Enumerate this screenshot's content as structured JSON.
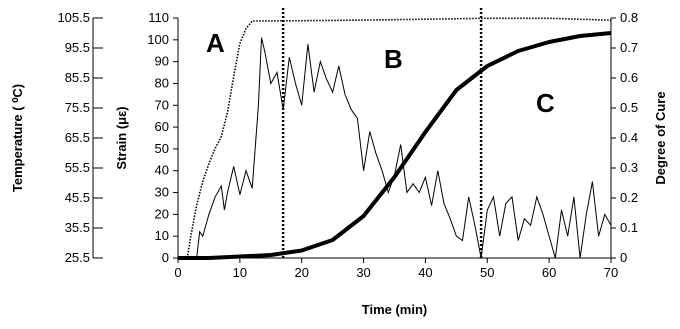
{
  "chart_data": {
    "type": "line",
    "xlabel": "Time (min)",
    "x_ticks": [
      "0",
      "10",
      "20",
      "30",
      "40",
      "50",
      "60",
      "70"
    ],
    "xlim": [
      0,
      70
    ],
    "axes": {
      "temperature": {
        "label": "Temperature ( ⁰C)",
        "ticks": [
          "105.5",
          "95.5",
          "85.5",
          "75.5",
          "65.5",
          "55.5",
          "45.5",
          "35.5",
          "25.5"
        ],
        "range": [
          25.5,
          105.5
        ]
      },
      "strain": {
        "label": "Strain (με)",
        "ticks": [
          "110",
          "100",
          "90",
          "80",
          "70",
          "60",
          "50",
          "40",
          "30",
          "20",
          "10",
          "0"
        ],
        "range": [
          0,
          110
        ]
      },
      "degree_of_cure": {
        "label": "Degree of Cure",
        "ticks": [
          "0.8",
          "0.7",
          "0.6",
          "0.5",
          "0.4",
          "0.3",
          "0.2",
          "0.1",
          "0"
        ],
        "range": [
          0,
          0.8
        ]
      }
    },
    "regions": [
      "A",
      "B",
      "C"
    ],
    "dividers_x": [
      17,
      49
    ],
    "grid": false,
    "legend": "none",
    "series": [
      {
        "axis": "temperature",
        "style": "dotted",
        "x": [
          0,
          1.5,
          2,
          3,
          4,
          5,
          6,
          7,
          8,
          9,
          10,
          11,
          12,
          20,
          30,
          40,
          50,
          60,
          68,
          70
        ],
        "y": [
          25.5,
          25.5,
          32,
          43,
          51,
          57,
          62,
          66,
          74,
          86,
          97,
          102,
          104.5,
          104.6,
          104.8,
          105.1,
          105.4,
          105.4,
          104.9,
          104.8
        ]
      },
      {
        "axis": "strain",
        "style": "solid",
        "x": [
          0,
          3,
          3.5,
          4,
          5,
          6,
          7,
          7.5,
          8,
          9,
          10,
          11,
          12,
          13,
          13.5,
          14,
          15,
          16,
          17,
          18,
          19,
          20,
          21,
          22,
          23,
          24,
          25,
          26,
          27,
          28,
          29,
          30,
          31,
          32,
          33,
          34,
          35,
          36,
          37,
          38,
          39,
          40,
          41,
          42,
          43,
          44,
          45,
          46,
          47,
          48,
          49,
          50,
          51,
          52,
          53,
          54,
          55,
          56,
          57,
          58,
          59,
          60,
          61,
          62,
          63,
          64,
          65,
          66,
          67,
          68,
          69,
          70
        ],
        "y": [
          0,
          0,
          12,
          10,
          20,
          28,
          33,
          22,
          30,
          42,
          29,
          40,
          32,
          70,
          101,
          95,
          80,
          85,
          68,
          92,
          80,
          70,
          98,
          76,
          90,
          82,
          76,
          88,
          75,
          68,
          64,
          40,
          58,
          48,
          40,
          30,
          38,
          52,
          30,
          34,
          30,
          37,
          24,
          40,
          25,
          18,
          10,
          8,
          28,
          15,
          0,
          22,
          28,
          10,
          25,
          28,
          8,
          18,
          15,
          28,
          20,
          10,
          0,
          22,
          10,
          28,
          0,
          20,
          35,
          10,
          20,
          15
        ]
      },
      {
        "axis": "degree_of_cure",
        "style": "bold",
        "x": [
          0,
          5,
          10,
          15,
          20,
          25,
          30,
          35,
          40,
          45,
          50,
          55,
          60,
          65,
          70
        ],
        "y": [
          0,
          0,
          0.005,
          0.01,
          0.025,
          0.06,
          0.14,
          0.27,
          0.42,
          0.56,
          0.64,
          0.69,
          0.72,
          0.74,
          0.75
        ]
      }
    ]
  }
}
